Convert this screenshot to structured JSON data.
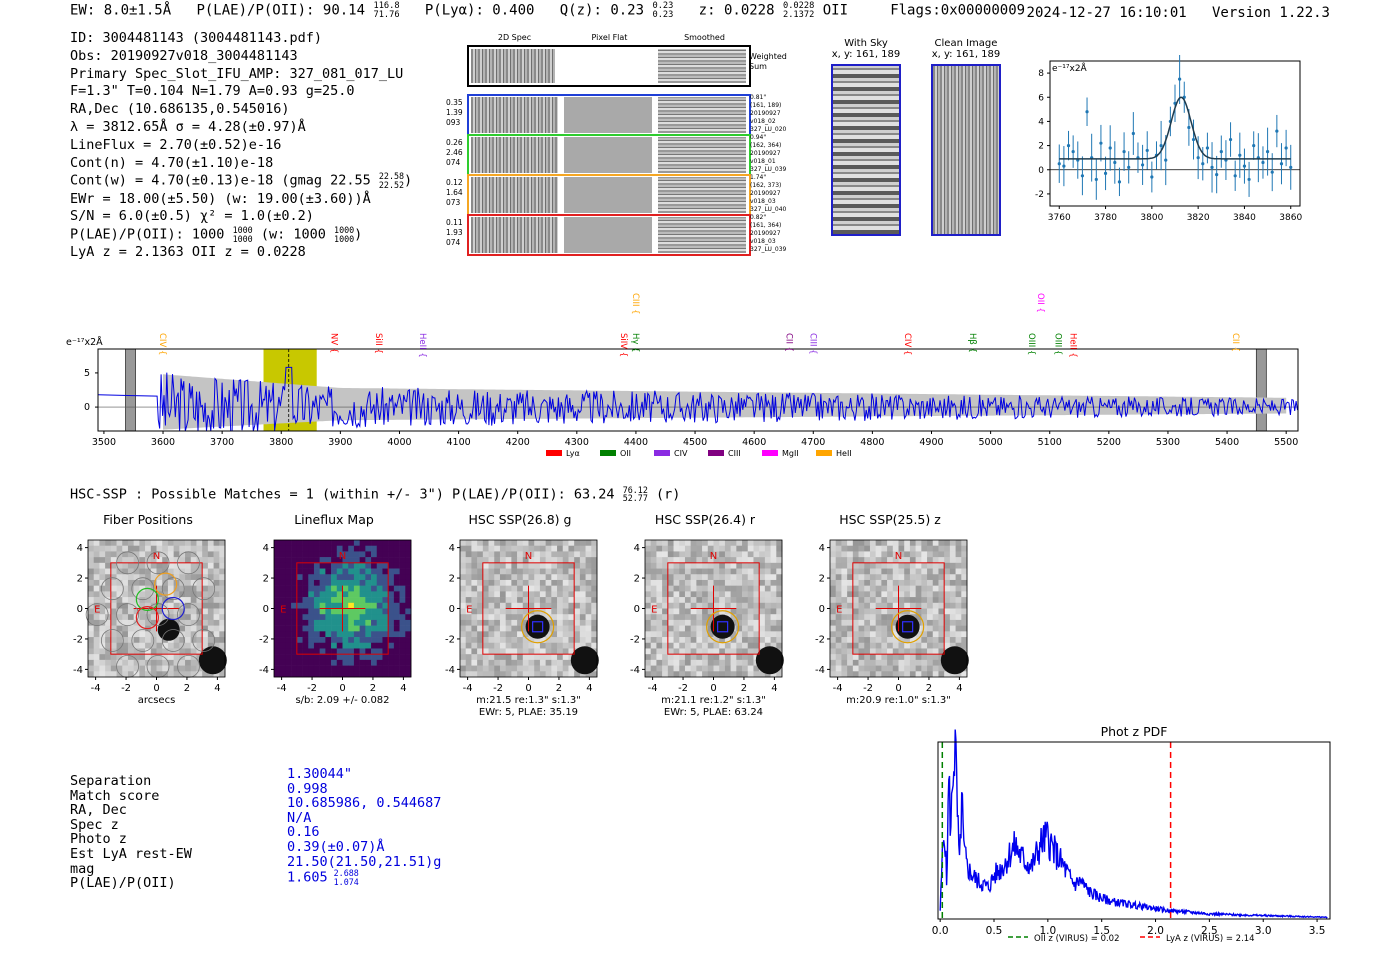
{
  "header": {
    "ew": "EW: 8.0±1.5Å",
    "plae_label": "P(LAE)/P(OII): 90.14",
    "plae_hi": "116.8",
    "plae_lo": "71.76",
    "plya": "P(Lyα): 0.400",
    "qz_label": "Q(z): 0.23",
    "qz_hi": "0.23",
    "qz_lo": "0.23",
    "z_label": "z: 0.0228",
    "z_hi": "0.0228",
    "z_lo": "2.1372",
    "z_line": "OII",
    "flags": "Flags:0x00000009",
    "timestamp": "2024-12-27 16:10:01",
    "version": "Version 1.22.3"
  },
  "info": {
    "id": "ID: 3004481143 (3004481143.pdf)",
    "obs": "Obs: 20190927v018_3004481143",
    "spec_slot": "Primary Spec_Slot_IFU_AMP: 327_081_017_LU",
    "params": "F=1.3\"  T=0.104  N=1.79  A=0.93  g=25.0",
    "radec": "RA,Dec (10.686135,0.545016)",
    "lambda": "λ = 3812.65Å  σ = 4.28(±0.97)Å",
    "lineflux": "LineFlux = 2.70(±0.52)e-16",
    "cont_n": "Cont(n) = 4.70(±1.10)e-18",
    "cont_w": "Cont(w) = 4.70(±0.13)e-18 (gmag 22.55",
    "cont_w_hi": "22.58",
    "cont_w_lo": "22.52",
    "ewr": "EWr = 18.00(±5.50) (w: 19.00(±3.60))Å",
    "sn": "S/N = 6.0(±0.5)  χ² = 1.0(±0.2)",
    "plae": "P(LAE)/P(OII): 1000",
    "plae_hi": "1000",
    "plae_lo": "1000",
    "plae_w": "(w: 1000",
    "plae_w_hi": "1000",
    "plae_w_lo": "1000",
    "lya_z": "LyA z = 2.1363  OII z = 0.0228"
  },
  "cutouts": {
    "col_titles": [
      "2D Spec",
      "Pixel Flat",
      "Smoothed"
    ],
    "weighted_sum": "Weighted Sum",
    "rows": [
      {
        "left": [
          "0.35",
          "1.39",
          "093"
        ],
        "right": [
          "0.81\"",
          "(161, 189)",
          "20190927",
          "v018_02",
          "327_LU_020"
        ],
        "color": "#1f3fd6"
      },
      {
        "left": [
          "0.26",
          "2.46",
          "074"
        ],
        "right": [
          "0.94\"",
          "(162, 364)",
          "20190927",
          "v018_01",
          "327_LU_039"
        ],
        "color": "#2ecc2e"
      },
      {
        "left": [
          "0.12",
          "1.64",
          "073"
        ],
        "right": [
          "1.74\"",
          "(162, 373)",
          "20190927",
          "v018_03",
          "327_LU_040"
        ],
        "color": "#f5a623"
      },
      {
        "left": [
          "0.11",
          "1.93",
          "074"
        ],
        "right": [
          "0.82\"",
          "(161, 364)",
          "20190927",
          "v018_03",
          "327_LU_039"
        ],
        "color": "#e02020"
      }
    ]
  },
  "sky_panels": {
    "with_sky_title": "With Sky",
    "with_sky_xy": "x, y: 161, 189",
    "clean_title": "Clean Image",
    "clean_xy": "x, y: 161, 189"
  },
  "zoom_chart": {
    "ylabel": "e⁻¹⁷x2Å",
    "xticks": [
      "3760",
      "3780",
      "3800",
      "3820",
      "3840",
      "3860"
    ],
    "yticks": [
      "8",
      "6",
      "4",
      "2",
      "0",
      "-2"
    ]
  },
  "full_spectrum": {
    "ylabel": "e⁻¹⁷x2Å",
    "xticks": [
      "3500",
      "3600",
      "3700",
      "3800",
      "3900",
      "4000",
      "4100",
      "4200",
      "4300",
      "4400",
      "4500",
      "4600",
      "4700",
      "4800",
      "4900",
      "5000",
      "5100",
      "5200",
      "5300",
      "5400",
      "5500"
    ],
    "yticks": [
      "5",
      "0"
    ],
    "legend": [
      {
        "label": "Lyα",
        "color": "#ff0000"
      },
      {
        "label": "OII",
        "color": "#008000"
      },
      {
        "label": "CIV",
        "color": "#8a2be2"
      },
      {
        "label": "CIII",
        "color": "#800080"
      },
      {
        "label": "MgII",
        "color": "#ff00ff"
      },
      {
        "label": "HeII",
        "color": "#ffa500"
      }
    ],
    "lines": [
      {
        "label": "CIV",
        "color": "#ffa500",
        "wave": 3600
      },
      {
        "label": "NV",
        "color": "#ff0000",
        "wave": 3890
      },
      {
        "label": "SiII",
        "color": "#ff0000",
        "wave": 3965
      },
      {
        "label": "HeII",
        "color": "#8a2be2",
        "wave": 4040
      },
      {
        "label": "SiIV",
        "color": "#ff0000",
        "wave": 4380
      },
      {
        "label": "CIII",
        "color": "#ffa500",
        "wave": 4400,
        "high": true
      },
      {
        "label": "Hγ",
        "color": "#008000",
        "wave": 4400
      },
      {
        "label": "CII",
        "color": "#800080",
        "wave": 4660
      },
      {
        "label": "CIII",
        "color": "#8a2be2",
        "wave": 4700
      },
      {
        "label": "CIV",
        "color": "#ff0000",
        "wave": 4860
      },
      {
        "label": "Hβ",
        "color": "#008000",
        "wave": 4970
      },
      {
        "label": "OII",
        "color": "#ff00ff",
        "wave": 5085,
        "high": true
      },
      {
        "label": "OIII",
        "color": "#008000",
        "wave": 5070
      },
      {
        "label": "OIII",
        "color": "#008000",
        "wave": 5115
      },
      {
        "label": "HeII",
        "color": "#ff0000",
        "wave": 5140
      },
      {
        "label": "CII",
        "color": "#ffa500",
        "wave": 5415
      }
    ]
  },
  "hsc_title": "HSC-SSP : Possible Matches = 1 (within +/- 3\")  P(LAE)/P(OII): 63.24",
  "hsc_hi": "76.12",
  "hsc_lo": "52.77",
  "hsc_suffix": "(r)",
  "thumbnails": [
    {
      "title": "Fiber Positions",
      "caption1": "arcsecs",
      "caption2": "",
      "kind": "fiber"
    },
    {
      "title": "Lineflux Map",
      "caption1": "s/b: 2.09 +/- 0.082",
      "caption2": "",
      "kind": "flux"
    },
    {
      "title": "HSC SSP(26.8) g",
      "caption1": "m:21.5  re:1.3\"  s:1.3\"",
      "caption2": "EWr: 5, PLAE: 35.19",
      "kind": "hsc"
    },
    {
      "title": "HSC SSP(26.4) r",
      "caption1": "m:21.1  re:1.2\"  s:1.3\"",
      "caption2": "EWr: 5, PLAE: 63.24",
      "kind": "hsc"
    },
    {
      "title": "HSC SSP(25.5) z",
      "caption1": "m:20.9  re:1.0\"  s:1.3\"",
      "caption2": "",
      "kind": "hsc"
    }
  ],
  "thumb_axis": {
    "xticks": [
      "-4",
      "-2",
      "0",
      "2",
      "4"
    ],
    "yticks": [
      "4",
      "2",
      "0",
      "-2",
      "-4"
    ],
    "north": "N",
    "east": "E"
  },
  "match": {
    "labels": [
      "Separation",
      "Match score",
      "RA, Dec",
      "Spec z",
      "Photo z",
      "Est LyA rest-EW",
      "mag",
      "P(LAE)/P(OII)"
    ],
    "values": [
      "1.30044\"",
      "0.998",
      "10.685986, 0.544687",
      "N/A",
      "0.16",
      "0.39(±0.07)Å",
      "21.50(21.50,21.51)g",
      "1.605"
    ],
    "last_hi": "2.688",
    "last_lo": "1.074"
  },
  "photz": {
    "title": "Phot z PDF",
    "xticks": [
      "0.0",
      "0.5",
      "1.0",
      "1.5",
      "2.0",
      "2.5",
      "3.0",
      "3.5"
    ],
    "legend_oii": "OII z (VIRUS) = 0.02",
    "legend_lya": "LyA z (VIRUS) = 2.14"
  },
  "chart_data": [
    {
      "type": "scatter",
      "title": "",
      "xlabel": "",
      "ylabel": "e⁻¹⁷x2Å",
      "xlim": [
        3756,
        3864
      ],
      "ylim": [
        -3,
        9
      ],
      "x": [
        3760,
        3762,
        3764,
        3766,
        3768,
        3770,
        3772,
        3774,
        3776,
        3778,
        3780,
        3782,
        3784,
        3786,
        3788,
        3790,
        3792,
        3794,
        3796,
        3798,
        3800,
        3802,
        3804,
        3806,
        3808,
        3810,
        3812,
        3814,
        3816,
        3818,
        3820,
        3822,
        3824,
        3826,
        3828,
        3830,
        3832,
        3834,
        3836,
        3838,
        3840,
        3842,
        3844,
        3846,
        3848,
        3850,
        3852,
        3854,
        3856,
        3858,
        3860
      ],
      "y": [
        0.5,
        0.3,
        2.0,
        1.5,
        0.8,
        -0.5,
        4.8,
        1.0,
        -0.8,
        2.2,
        -0.3,
        1.8,
        0.6,
        -1.0,
        1.5,
        0.2,
        3.0,
        1.0,
        0.4,
        1.6,
        -0.6,
        1.2,
        2.0,
        0.8,
        4.0,
        5.5,
        7.5,
        6.0,
        3.5,
        2.5,
        1.0,
        0.5,
        1.8,
        0.2,
        -0.4,
        1.5,
        0.8,
        2.5,
        -0.5,
        1.2,
        0.3,
        -0.8,
        2.0,
        1.0,
        0.6,
        1.5,
        -0.2,
        3.2,
        0.5,
        1.8,
        0.2
      ],
      "fit_peak": 6.0,
      "fit_center": 3812.65,
      "fit_sigma": 4.28,
      "fit_baseline": 0.9
    },
    {
      "type": "line",
      "title": "",
      "xlabel": "",
      "ylabel": "e⁻¹⁷x2Å",
      "xlim": [
        3490,
        5520
      ],
      "ylim": [
        -3.5,
        8.5
      ],
      "highlight": [
        3770,
        3860
      ],
      "center_line": 3812.65,
      "note": "noisy spectrum, amplitude decreasing from ~6 at 3600 to ~1 at 5500"
    },
    {
      "type": "line",
      "title": "Phot z PDF",
      "xlabel": "",
      "ylabel": "",
      "xlim": [
        -0.02,
        3.62
      ],
      "x": [
        0.0,
        0.02,
        0.04,
        0.06,
        0.08,
        0.1,
        0.12,
        0.14,
        0.16,
        0.18,
        0.2,
        0.22,
        0.25,
        0.3,
        0.35,
        0.4,
        0.45,
        0.5,
        0.55,
        0.6,
        0.65,
        0.7,
        0.75,
        0.8,
        0.85,
        0.9,
        0.95,
        1.0,
        1.05,
        1.1,
        1.15,
        1.2,
        1.25,
        1.3,
        1.35,
        1.4,
        1.5,
        1.6,
        1.7,
        1.8,
        1.9,
        2.0,
        2.1,
        2.2,
        2.3,
        2.5,
        2.7,
        3.0,
        3.3,
        3.6
      ],
      "values": [
        0.05,
        0.35,
        0.55,
        0.2,
        0.8,
        0.5,
        0.9,
        1.0,
        0.6,
        0.3,
        0.7,
        0.4,
        0.3,
        0.25,
        0.22,
        0.2,
        0.18,
        0.25,
        0.28,
        0.32,
        0.38,
        0.42,
        0.36,
        0.33,
        0.3,
        0.38,
        0.45,
        0.47,
        0.4,
        0.35,
        0.3,
        0.24,
        0.2,
        0.22,
        0.18,
        0.15,
        0.12,
        0.1,
        0.09,
        0.08,
        0.07,
        0.06,
        0.05,
        0.045,
        0.04,
        0.03,
        0.025,
        0.02,
        0.015,
        0.01
      ],
      "markers": [
        {
          "label": "OII z (VIRUS) = 0.02",
          "x": 0.02,
          "color": "#008000"
        },
        {
          "label": "LyA z (VIRUS) = 2.14",
          "x": 2.14,
          "color": "#ff0000"
        }
      ]
    }
  ]
}
